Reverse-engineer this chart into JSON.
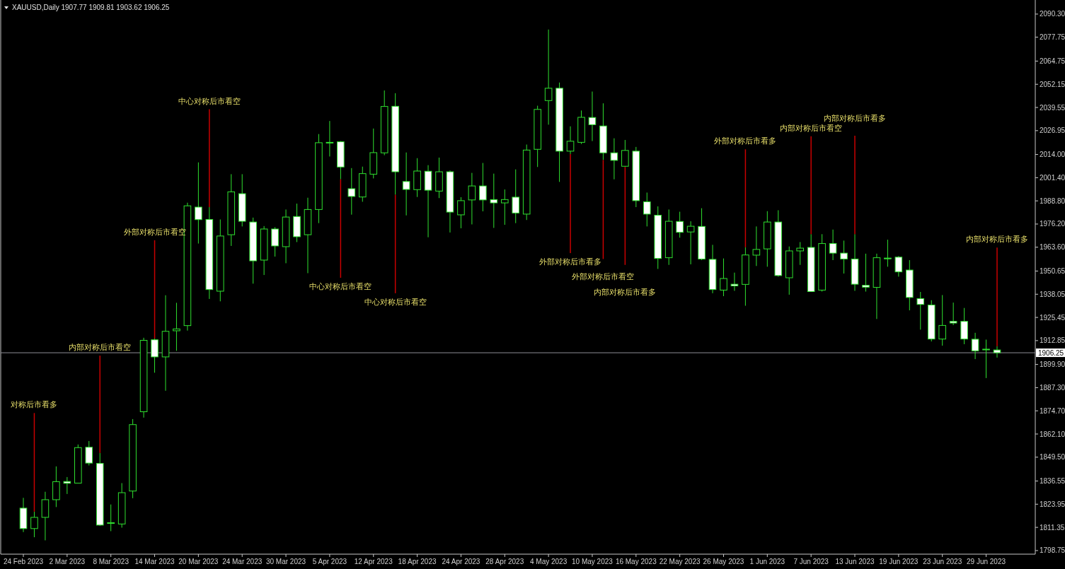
{
  "chart_data": {
    "type": "candlestick",
    "title": "XAUUSD,Daily  1907.77 1909.81 1903.62 1906.25",
    "categories": [
      "24 Feb 2023",
      null,
      null,
      null,
      "2 Mar 2023",
      null,
      null,
      null,
      "8 Mar 2023",
      null,
      null,
      null,
      "14 Mar 2023",
      null,
      null,
      null,
      "20 Mar 2023",
      null,
      null,
      null,
      "24 Mar 2023",
      null,
      null,
      null,
      "30 Mar 2023",
      null,
      null,
      null,
      "5 Apr 2023",
      null,
      null,
      null,
      "12 Apr 2023",
      null,
      null,
      null,
      "18 Apr 2023",
      null,
      null,
      null,
      "24 Apr 2023",
      null,
      null,
      null,
      "28 Apr 2023",
      null,
      null,
      null,
      "4 May 2023",
      null,
      null,
      null,
      "10 May 2023",
      null,
      null,
      null,
      "16 May 2023",
      null,
      null,
      null,
      "22 May 2023",
      null,
      null,
      null,
      "26 May 2023",
      null,
      null,
      null,
      "1 Jun 2023",
      null,
      null,
      null,
      "7 Jun 2023",
      null,
      null,
      null,
      "13 Jun 2023",
      null,
      null,
      null,
      "19 Jun 2023",
      null,
      null,
      null,
      "23 Jun 2023",
      null,
      null,
      null,
      "29 Jun 2023",
      null
    ],
    "color": "#2fe02f",
    "ohlc": [
      [
        1821.8,
        1827.4,
        1808.8,
        1810.7
      ],
      [
        1810.7,
        1819.9,
        1806.0,
        1816.8
      ],
      [
        1816.8,
        1830.7,
        1804.3,
        1826.4
      ],
      [
        1826.4,
        1844.5,
        1822.4,
        1836.2
      ],
      [
        1836.3,
        1838.7,
        1829.5,
        1835.3
      ],
      [
        1835.4,
        1856.4,
        1835.4,
        1854.7
      ],
      [
        1854.9,
        1858.3,
        1845.0,
        1846.3
      ],
      [
        1846.1,
        1851.8,
        1812.2,
        1812.6
      ],
      [
        1813.5,
        1823.8,
        1809.3,
        1813.9
      ],
      [
        1813.2,
        1835.4,
        1811.2,
        1830.2
      ],
      [
        1831.1,
        1870.2,
        1827.2,
        1867.2
      ],
      [
        1874.2,
        1914.4,
        1871.0,
        1913.0
      ],
      [
        1913.3,
        1914.0,
        1895.4,
        1904.0
      ],
      [
        1904.0,
        1937.5,
        1885.6,
        1917.9
      ],
      [
        1918.2,
        1933.4,
        1907.3,
        1919.2
      ],
      [
        1921.0,
        1987.8,
        1918.3,
        1986.1
      ],
      [
        1985.4,
        2009.7,
        1965.6,
        1978.6
      ],
      [
        1978.7,
        1985.4,
        1935.5,
        1940.6
      ],
      [
        1939.7,
        1978.7,
        1934.2,
        1969.7
      ],
      [
        1970.4,
        2003.3,
        1964.3,
        1993.7
      ],
      [
        1992.7,
        2003.3,
        1974.9,
        1977.7
      ],
      [
        1977.3,
        1979.7,
        1943.8,
        1956.2
      ],
      [
        1956.6,
        1975.1,
        1948.5,
        1973.5
      ],
      [
        1973.5,
        1974.5,
        1958.5,
        1964.3
      ],
      [
        1963.9,
        1984.1,
        1954.9,
        1980.0
      ],
      [
        1980.3,
        1987.3,
        1966.4,
        1969.3
      ],
      [
        1970.4,
        1990.5,
        1949.5,
        1984.1
      ],
      [
        1984.1,
        2025.1,
        1976.7,
        2020.4
      ],
      [
        2020.3,
        2032.2,
        2012.9,
        2020.6
      ],
      [
        2020.9,
        2021.3,
        2000.5,
        2007.2
      ],
      [
        1995.4,
        2006.6,
        1981.3,
        1991.2
      ],
      [
        1990.9,
        2007.4,
        1988.3,
        2003.6
      ],
      [
        2003.3,
        2028.1,
        2001.0,
        2015.0
      ],
      [
        2014.9,
        2048.8,
        2013.6,
        2040.1
      ],
      [
        2040.2,
        2047.3,
        1992.1,
        2004.6
      ],
      [
        1999.3,
        2015.1,
        1980.9,
        1995.0
      ],
      [
        1994.9,
        2012.0,
        1990.9,
        2005.0
      ],
      [
        2004.9,
        2008.2,
        1969.0,
        1994.6
      ],
      [
        1994.1,
        2012.3,
        1990.3,
        2004.6
      ],
      [
        2004.6,
        2005.3,
        1971.6,
        1982.7
      ],
      [
        1981.2,
        1990.8,
        1973.9,
        1988.9
      ],
      [
        1989.3,
        2004.0,
        1976.0,
        1996.9
      ],
      [
        1996.9,
        2009.4,
        1983.1,
        1989.3
      ],
      [
        1989.5,
        2003.6,
        1974.1,
        1987.7
      ],
      [
        1987.7,
        1995.0,
        1975.8,
        1989.5
      ],
      [
        1990.8,
        2005.9,
        1976.7,
        1982.2
      ],
      [
        1981.6,
        2019.4,
        1978.4,
        2016.4
      ],
      [
        2016.8,
        2040.5,
        2007.2,
        2038.5
      ],
      [
        2043.3,
        2081.9,
        2030.2,
        2050.0
      ],
      [
        2050.0,
        2053.1,
        1999.1,
        2015.8
      ],
      [
        2015.8,
        2029.3,
        2014.2,
        2021.2
      ],
      [
        2020.6,
        2037.9,
        2019.7,
        2034.2
      ],
      [
        2034.1,
        2048.2,
        2021.3,
        2030.2
      ],
      [
        2029.5,
        2041.8,
        2011.0,
        2014.9
      ],
      [
        2014.9,
        2022.8,
        2000.5,
        2010.8
      ],
      [
        2007.6,
        2021.9,
        2007.2,
        2016.2
      ],
      [
        2015.8,
        2018.1,
        1985.4,
        1988.9
      ],
      [
        1988.3,
        1993.3,
        1974.9,
        1981.6
      ],
      [
        1981.0,
        1985.8,
        1951.8,
        1957.5
      ],
      [
        1957.9,
        1984.1,
        1954.0,
        1977.7
      ],
      [
        1977.6,
        1982.9,
        1968.8,
        1971.7
      ],
      [
        1971.9,
        1977.7,
        1954.3,
        1975.0
      ],
      [
        1974.9,
        1984.8,
        1956.6,
        1957.2
      ],
      [
        1957.0,
        1964.9,
        1938.6,
        1940.6
      ],
      [
        1940.3,
        1957.5,
        1937.0,
        1946.6
      ],
      [
        1943.5,
        1949.8,
        1939.9,
        1942.6
      ],
      [
        1943.4,
        1963.6,
        1931.8,
        1959.4
      ],
      [
        1959.3,
        1974.9,
        1953.4,
        1962.4
      ],
      [
        1962.7,
        1983.2,
        1953.0,
        1977.3
      ],
      [
        1977.3,
        1983.7,
        1947.6,
        1948.2
      ],
      [
        1947.0,
        1964.0,
        1937.8,
        1961.6
      ],
      [
        1961.6,
        1966.4,
        1954.0,
        1963.1
      ],
      [
        1963.5,
        1970.7,
        1939.3,
        1939.5
      ],
      [
        1940.3,
        1970.7,
        1939.5,
        1965.6
      ],
      [
        1965.6,
        1973.2,
        1956.6,
        1960.4
      ],
      [
        1960.4,
        1967.2,
        1949.3,
        1957.2
      ],
      [
        1957.2,
        1970.7,
        1939.9,
        1943.5
      ],
      [
        1942.9,
        1960.1,
        1939.5,
        1941.9
      ],
      [
        1941.8,
        1960.1,
        1924.6,
        1957.9
      ],
      [
        1957.7,
        1967.7,
        1953.0,
        1957.6
      ],
      [
        1958.2,
        1958.8,
        1947.6,
        1950.2
      ],
      [
        1951.2,
        1956.6,
        1929.3,
        1936.3
      ],
      [
        1935.7,
        1939.3,
        1918.8,
        1932.5
      ],
      [
        1932.2,
        1934.8,
        1912.4,
        1913.7
      ],
      [
        1913.7,
        1937.6,
        1910.1,
        1921.1
      ],
      [
        1923.3,
        1933.5,
        1921.3,
        1922.4
      ],
      [
        1923.3,
        1930.6,
        1910.9,
        1913.7
      ],
      [
        1913.6,
        1917.1,
        1902.8,
        1907.3
      ],
      [
        1908.1,
        1913.4,
        1892.5,
        1908.2
      ],
      [
        1907.77,
        1909.81,
        1903.62,
        1906.25
      ]
    ],
    "series": [
      {
        "type": "bar",
        "color": "#c80000",
        "base": [
          null,
          1819.9,
          null,
          null,
          null,
          null,
          null,
          1851.8,
          null,
          null,
          null,
          null,
          1914.0,
          null,
          null,
          null,
          null,
          1985.4,
          null,
          null,
          null,
          null,
          null,
          null,
          null,
          null,
          null,
          null,
          null,
          2000.5,
          null,
          null,
          null,
          null,
          1992.1,
          null,
          null,
          null,
          null,
          null,
          null,
          null,
          null,
          null,
          null,
          null,
          null,
          null,
          null,
          null,
          2014.2,
          null,
          null,
          2011.0,
          null,
          2007.2,
          null,
          null,
          null,
          null,
          null,
          null,
          null,
          null,
          null,
          null,
          1963.6,
          null,
          null,
          null,
          null,
          null,
          1970.7,
          null,
          null,
          null,
          1970.7,
          null,
          null,
          null,
          null,
          null,
          null,
          null,
          null,
          null,
          null,
          null,
          null,
          1909.81
        ],
        "values": [
          null,
          53.6,
          null,
          null,
          null,
          null,
          null,
          52.9,
          null,
          null,
          null,
          null,
          53.4,
          null,
          null,
          null,
          null,
          53.2,
          null,
          null,
          null,
          null,
          null,
          null,
          null,
          null,
          null,
          null,
          null,
          -53.5,
          null,
          null,
          null,
          null,
          -53.5,
          null,
          null,
          null,
          null,
          null,
          null,
          null,
          null,
          null,
          null,
          null,
          null,
          null,
          null,
          null,
          -53.8,
          null,
          null,
          -53.8,
          null,
          -53.2,
          null,
          null,
          null,
          null,
          null,
          null,
          null,
          null,
          null,
          null,
          53.2,
          null,
          null,
          null,
          null,
          null,
          53.2,
          null,
          null,
          null,
          53.5,
          null,
          null,
          null,
          null,
          null,
          null,
          null,
          null,
          null,
          null,
          null,
          null,
          53.6
        ],
        "value_labels": [
          null,
          "对称后市看多",
          null,
          null,
          null,
          null,
          null,
          "内部对称后市看空",
          null,
          null,
          null,
          null,
          "外部对称后市看空",
          null,
          null,
          null,
          null,
          "中心对称后市看空",
          null,
          null,
          null,
          null,
          null,
          null,
          null,
          null,
          null,
          null,
          null,
          "中心对称后市看空",
          null,
          null,
          null,
          null,
          "中心对称后市看空",
          null,
          null,
          null,
          null,
          null,
          null,
          null,
          null,
          null,
          null,
          null,
          null,
          null,
          null,
          null,
          "外部对称后市看多",
          null,
          null,
          "外部对称后市看空",
          null,
          "内部对称后市看多",
          null,
          null,
          null,
          null,
          null,
          null,
          null,
          null,
          null,
          null,
          "外部对称后市看多",
          null,
          null,
          null,
          null,
          null,
          "内部对称后市看空",
          null,
          null,
          null,
          "内部对称后市看多",
          null,
          null,
          null,
          null,
          null,
          null,
          null,
          null,
          null,
          null,
          null,
          null,
          "内部对称后市看多"
        ]
      }
    ],
    "ylim": [
      1796.8,
      2096.8
    ],
    "yticks": [
      {
        "value": 2090.3,
        "label": "2090.30"
      },
      {
        "value": 2077.75,
        "label": "2077.75"
      },
      {
        "value": 2064.75,
        "label": "2064.75"
      },
      {
        "value": 2052.15,
        "label": "2052.15"
      },
      {
        "value": 2039.55,
        "label": "2039.55"
      },
      {
        "value": 2026.95,
        "label": "2026.95"
      },
      {
        "value": 2014.0,
        "label": "2014.00"
      },
      {
        "value": 2001.4,
        "label": "2001.40"
      },
      {
        "value": 1988.8,
        "label": "1988.80"
      },
      {
        "value": 1976.2,
        "label": "1976.20"
      },
      {
        "value": 1963.6,
        "label": "1963.60"
      },
      {
        "value": 1950.65,
        "label": "1950.65"
      },
      {
        "value": 1938.05,
        "label": "1938.05"
      },
      {
        "value": 1925.45,
        "label": "1925.45"
      },
      {
        "value": 1912.85,
        "label": "1912.85"
      },
      {
        "value": 1899.9,
        "label": "1899.90"
      },
      {
        "value": 1887.3,
        "label": "1887.30"
      },
      {
        "value": 1874.7,
        "label": "1874.70"
      },
      {
        "value": 1862.1,
        "label": "1862.10"
      },
      {
        "value": 1849.5,
        "label": "1849.50"
      },
      {
        "value": 1836.55,
        "label": "1836.55"
      },
      {
        "value": 1823.95,
        "label": "1823.95"
      },
      {
        "value": 1811.35,
        "label": "1811.35"
      },
      {
        "value": 1798.75,
        "label": "1798.75"
      }
    ],
    "ref_lines": [
      {
        "axis": "y",
        "value": 1906.25,
        "label": "1906.25",
        "color": "#8c8c96"
      }
    ]
  }
}
